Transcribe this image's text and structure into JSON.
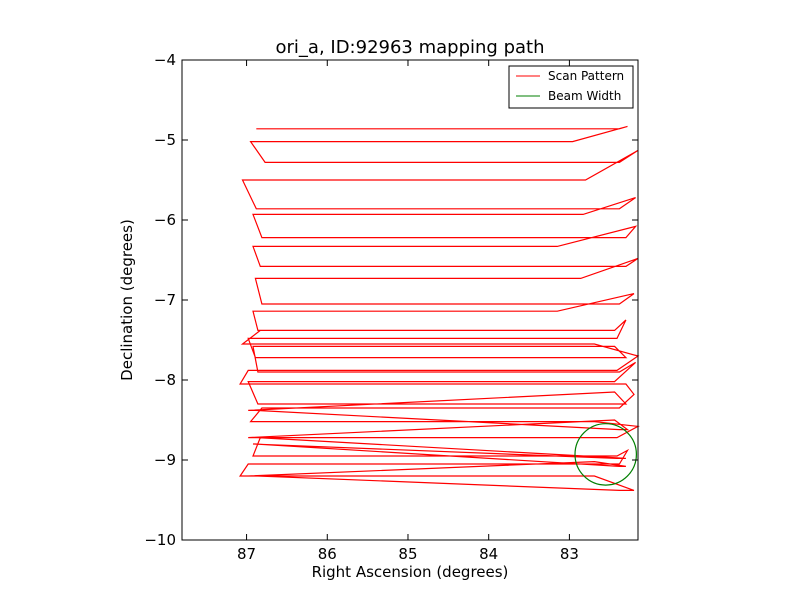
{
  "chart_data": {
    "type": "line",
    "title": "ori_a, ID:92963 mapping path",
    "xlabel": "Right Ascension (degrees)",
    "ylabel": "Declination (degrees)",
    "xlim": [
      87.8,
      82.15
    ],
    "ylim": [
      -10,
      -4
    ],
    "x_ticks": [
      "87",
      "86",
      "85",
      "84",
      "83"
    ],
    "x_tick_values": [
      87,
      86,
      85,
      84,
      83
    ],
    "y_ticks": [
      "−4",
      "−5",
      "−6",
      "−7",
      "−8",
      "−9",
      "−10"
    ],
    "y_tick_values": [
      -4,
      -5,
      -6,
      -7,
      -8,
      -9,
      -10
    ],
    "legend_position": "top-right",
    "colors": {
      "scan": "#ff0000",
      "beam": "#007f00"
    },
    "series": [
      {
        "name": "Scan Pattern",
        "x": [
          86.88,
          82.38,
          82.28,
          82.96,
          86.95,
          86.77,
          82.38,
          82.15,
          82.8,
          87.05,
          86.88,
          82.38,
          82.18,
          82.83,
          86.92,
          86.81,
          82.3,
          82.18,
          83.15,
          86.92,
          86.83,
          82.3,
          82.15,
          82.86,
          86.89,
          86.81,
          82.38,
          82.2,
          83.15,
          86.92,
          86.86,
          82.44,
          82.3,
          82.41,
          86.98,
          86.89,
          82.3,
          82.44,
          86.92,
          86.86,
          82.38,
          82.18,
          82.44,
          86.98,
          86.86,
          82.3,
          82.44,
          86.98,
          86.89,
          82.38,
          82.28,
          82.44,
          86.98,
          86.86,
          82.3,
          82.41,
          86.92,
          86.89,
          82.38,
          82.3,
          82.69,
          86.98,
          86.86,
          82.38,
          82.2,
          82.69,
          87.08,
          86.98,
          82.38,
          82.28,
          82.41,
          86.92,
          86.83,
          82.41,
          82.15,
          82.69,
          86.95,
          86.81,
          82.38,
          82.2,
          82.3,
          87.08,
          86.98,
          82.41,
          82.15,
          82.69,
          87.05,
          86.83,
          82.44
        ],
        "y": [
          -4.86,
          -4.86,
          -4.83,
          -5.02,
          -5.02,
          -5.28,
          -5.28,
          -5.13,
          -5.5,
          -5.5,
          -5.86,
          -5.86,
          -5.72,
          -5.93,
          -5.93,
          -6.22,
          -6.22,
          -6.08,
          -6.33,
          -6.33,
          -6.58,
          -6.58,
          -6.48,
          -6.73,
          -6.73,
          -7.05,
          -7.05,
          -6.92,
          -7.14,
          -7.14,
          -7.38,
          -7.38,
          -7.25,
          -7.48,
          -7.48,
          -7.72,
          -7.72,
          -7.58,
          -7.58,
          -7.9,
          -7.9,
          -7.78,
          -8.02,
          -8.02,
          -8.3,
          -8.3,
          -8.15,
          -8.38,
          -8.38,
          -8.62,
          -8.62,
          -8.5,
          -8.72,
          -8.72,
          -8.98,
          -8.98,
          -8.8,
          -8.8,
          -9.08,
          -9.08,
          -9.02,
          -9.2,
          -9.2,
          -9.38,
          -9.38,
          -9.2,
          -9.2,
          -9.05,
          -9.05,
          -8.88,
          -8.95,
          -8.95,
          -8.72,
          -8.72,
          -8.58,
          -8.52,
          -8.52,
          -8.35,
          -8.35,
          -8.18,
          -8.05,
          -8.05,
          -7.88,
          -7.88,
          -7.7,
          -7.55,
          -7.55,
          -7.38,
          -7.38
        ]
      },
      {
        "name": "Beam Width",
        "center": [
          82.55,
          -8.93
        ],
        "radius_deg": 0.38
      }
    ]
  }
}
